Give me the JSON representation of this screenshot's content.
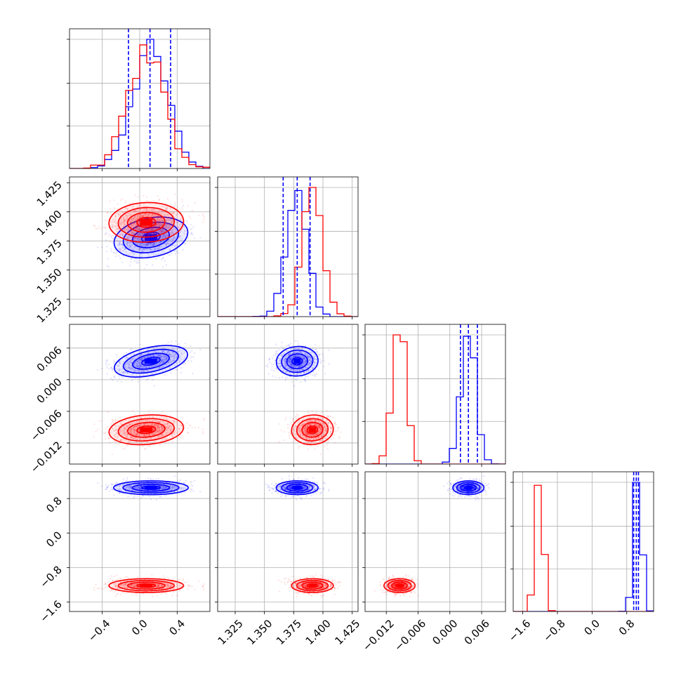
{
  "chart_data": {
    "type": "corner",
    "grid": true,
    "colors": {
      "blue": "#0000ff",
      "red": "#ff0000"
    },
    "parameters": [
      {
        "range": [
          -0.75,
          0.75
        ],
        "ticks": [
          "−0.4",
          "0.0",
          "0.4"
        ],
        "tick_values": [
          -0.4,
          0.0,
          0.4
        ]
      },
      {
        "range": [
          1.31,
          1.43
        ],
        "ticks": [
          "1.325",
          "1.350",
          "1.375",
          "1.400",
          "1.425"
        ],
        "tick_values": [
          1.325,
          1.35,
          1.375,
          1.4,
          1.425
        ]
      },
      {
        "range": [
          -0.016,
          0.0105
        ],
        "ticks": [
          "−0.012",
          "−0.006",
          "0.000",
          "0.006"
        ],
        "tick_values": [
          -0.012,
          -0.006,
          0.0,
          0.006
        ]
      },
      {
        "range": [
          -1.82,
          1.42
        ],
        "ticks": [
          "−1.6",
          "−0.8",
          "0.0",
          "0.8"
        ],
        "tick_values": [
          -1.6,
          -0.8,
          0.0,
          0.8
        ]
      }
    ],
    "series": [
      {
        "name": "blue",
        "color": "#0000ff",
        "means": [
          0.12,
          1.378,
          0.0035,
          1.05
        ],
        "sds": [
          0.19,
          0.0085,
          0.0014,
          0.08
        ],
        "correlations": [
          [
            0,
            1,
            0.25
          ],
          [
            0,
            2,
            0.45
          ],
          [
            1,
            2,
            0.05
          ]
        ],
        "quantiles": [
          [
            -0.12,
            0.11,
            0.33
          ],
          [
            1.366,
            1.378,
            1.389
          ],
          [
            0.002,
            0.0035,
            0.0052
          ],
          [
            0.96,
            1.02,
            1.07
          ]
        ]
      },
      {
        "name": "red",
        "color": "#ff0000",
        "means": [
          0.07,
          1.391,
          -0.0095,
          -1.22
        ],
        "sds": [
          0.19,
          0.0085,
          0.0014,
          0.08
        ],
        "correlations": [
          [
            0,
            1,
            0.05
          ],
          [
            0,
            2,
            0.15
          ],
          [
            1,
            2,
            0.05
          ]
        ],
        "quantiles": null
      }
    ]
  }
}
